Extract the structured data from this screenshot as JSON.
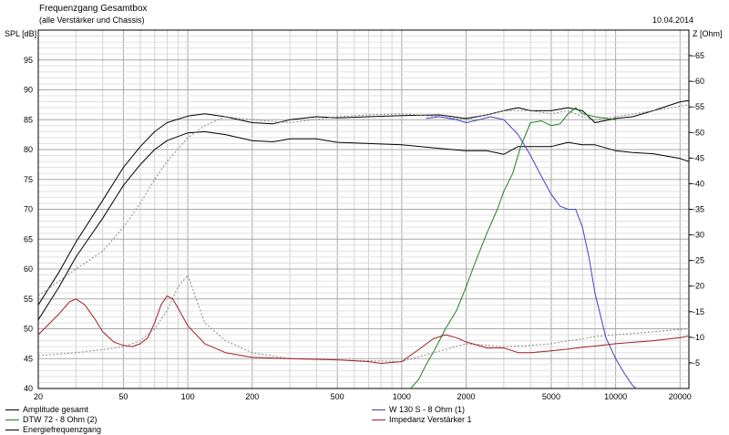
{
  "header": {
    "title": "Frequenzgang Gesamtbox",
    "subtitle": "(alle Verstärker und Chassis)",
    "date": "10.04.2014"
  },
  "chart_data": {
    "type": "line",
    "ylabel": "SPL [dB]",
    "ylabel_right": "Z [Ohm]",
    "x_scale": "log",
    "xlim": [
      20,
      22000
    ],
    "ylim": [
      40,
      100
    ],
    "ylim_right": [
      0,
      70
    ],
    "grid": true,
    "legend": "bottom",
    "x_ticks": [
      20,
      50,
      100,
      200,
      500,
      1000,
      2000,
      5000,
      10000,
      20000
    ],
    "x_tick_labels": [
      "20",
      "50",
      "100",
      "200",
      "500",
      "1000",
      "2000",
      "5000",
      "10000",
      "20000"
    ],
    "y_ticks": [
      40,
      45,
      50,
      55,
      60,
      65,
      70,
      75,
      80,
      85,
      90,
      95
    ],
    "y_right_ticks": [
      5,
      10,
      15,
      20,
      25,
      30,
      35,
      40,
      45,
      50,
      55,
      60,
      65
    ],
    "series": [
      {
        "name": "Amplitude gesamt",
        "color": "#000000",
        "axis": "left",
        "x": [
          20,
          25,
          30,
          40,
          50,
          60,
          70,
          80,
          100,
          120,
          150,
          200,
          250,
          300,
          400,
          500,
          700,
          1000,
          1500,
          2000,
          2500,
          3000,
          3500,
          4000,
          5000,
          6000,
          7000,
          8000,
          10000,
          12000,
          15000,
          20000,
          22000
        ],
        "y": [
          51.5,
          57,
          62,
          68.5,
          74,
          77.5,
          80,
          81.5,
          82.8,
          83,
          82.5,
          81.5,
          81.3,
          81.8,
          81.8,
          81.2,
          81,
          80.8,
          80.2,
          79.8,
          79.8,
          79.2,
          80.5,
          80.5,
          80.5,
          81.2,
          80.8,
          80.8,
          79.8,
          79.5,
          79.3,
          78.5,
          78
        ]
      },
      {
        "name": "Energiefrequenzgang",
        "color": "#000000",
        "axis": "left",
        "x": [
          20,
          25,
          30,
          40,
          50,
          60,
          70,
          80,
          100,
          120,
          150,
          200,
          250,
          300,
          400,
          500,
          700,
          1000,
          1500,
          2000,
          2500,
          3000,
          3500,
          4000,
          5000,
          6000,
          7000,
          8000,
          10000,
          12000,
          15000,
          20000,
          22000
        ],
        "y": [
          54,
          59.5,
          64.5,
          71.5,
          77,
          80.5,
          83,
          84.5,
          85.6,
          86,
          85.5,
          84.5,
          84.3,
          85,
          85.5,
          85.3,
          85.5,
          85.7,
          85.8,
          85.2,
          85.8,
          86.5,
          87,
          86.5,
          86.5,
          87,
          86.5,
          84.5,
          85.2,
          85.5,
          86.5,
          88,
          88.2
        ]
      },
      {
        "name": "",
        "color": "#888888",
        "dashed": true,
        "axis": "left",
        "x": [
          20,
          30,
          40,
          50,
          60,
          70,
          80,
          90,
          100,
          120,
          150,
          200,
          300,
          500,
          1000,
          2000,
          3000,
          4000,
          5000,
          6000,
          7000,
          8000,
          10000,
          15000,
          22000
        ],
        "y": [
          45.5,
          46,
          46.5,
          47,
          48,
          50,
          53,
          57,
          59,
          51,
          48,
          46,
          45,
          44.8,
          44.5,
          47.5,
          47,
          47.2,
          47.5,
          48,
          48.3,
          48.7,
          49,
          49.5,
          50
        ]
      },
      {
        "name": "",
        "color": "#888888",
        "dashed": true,
        "axis": "left",
        "x": [
          20,
          30,
          40,
          50,
          60,
          70,
          80,
          100,
          120,
          150,
          200,
          300,
          500,
          700,
          1000,
          1500,
          2000,
          3000,
          4000,
          5000,
          6000,
          7000,
          8000,
          10000,
          15000,
          22000
        ],
        "y": [
          55.5,
          60,
          63,
          67,
          71,
          75,
          78,
          82,
          84,
          85.5,
          85,
          84.5,
          85.5,
          85.8,
          86,
          85.5,
          85,
          86.5,
          86.5,
          86,
          86.5,
          85.5,
          85,
          85.5,
          86.5,
          87.5
        ]
      },
      {
        "name": "W 130 S - 8 Ohm (1)",
        "color": "#4040c8",
        "axis": "left",
        "x": [
          1300,
          1500,
          1800,
          2000,
          2300,
          2600,
          3000,
          3500,
          4000,
          4500,
          5000,
          5500,
          6000,
          6500,
          7000,
          7500,
          8000,
          9000,
          10000,
          11000,
          12000,
          13000
        ],
        "y": [
          85.2,
          85.5,
          85,
          84.5,
          85,
          85.5,
          85,
          82.5,
          79,
          75.5,
          72.5,
          70.5,
          70,
          70,
          67,
          62,
          56,
          48.5,
          45,
          42.5,
          40.5,
          39.5
        ]
      },
      {
        "name": "DTW 72 - 8 Ohm (2)",
        "color": "#208020",
        "axis": "left",
        "x": [
          1100,
          1200,
          1300,
          1400,
          1500,
          1600,
          1800,
          2000,
          2200,
          2500,
          2800,
          3000,
          3300,
          3600,
          4000,
          4500,
          5000,
          5500,
          6000,
          6500,
          7000,
          8000,
          10000
        ],
        "y": [
          40,
          41.5,
          44,
          46,
          48,
          50,
          53,
          57,
          61,
          66,
          70,
          73,
          76,
          80.5,
          84.5,
          84.8,
          84,
          84.3,
          86,
          87,
          86,
          85.5,
          85
        ]
      },
      {
        "name": "Impedanz Verstärker 1",
        "color": "#a02020",
        "axis": "left",
        "x": [
          20,
          25,
          28,
          30,
          33,
          37,
          40,
          45,
          50,
          55,
          60,
          65,
          70,
          75,
          80,
          85,
          90,
          100,
          120,
          150,
          200,
          300,
          500,
          700,
          800,
          1000,
          1200,
          1400,
          1600,
          1800,
          2000,
          2500,
          3000,
          3500,
          4000,
          5000,
          6000,
          7000,
          8000,
          10000,
          15000,
          20000,
          22000
        ],
        "y": [
          49,
          52.5,
          54.5,
          55,
          54,
          51.5,
          49.5,
          47.8,
          47.2,
          47,
          47.5,
          48.5,
          51,
          54,
          55.5,
          55,
          53.5,
          50.5,
          47.5,
          46,
          45.2,
          45,
          44.8,
          44.5,
          44.2,
          44.5,
          46.5,
          48.3,
          49,
          48.5,
          47.8,
          46.8,
          46.8,
          46,
          46,
          46.3,
          46.6,
          46.9,
          47.1,
          47.5,
          48,
          48.5,
          48.8
        ]
      }
    ]
  }
}
